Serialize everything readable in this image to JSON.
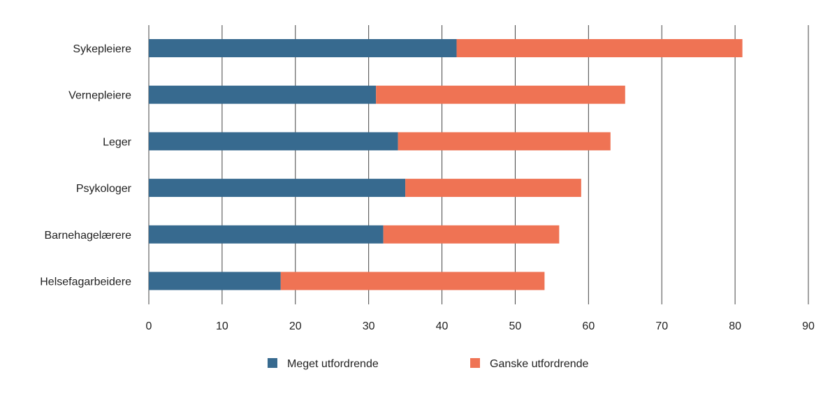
{
  "chart_data": {
    "type": "bar",
    "orientation": "horizontal",
    "stacked": true,
    "categories": [
      "Sykepleiere",
      "Vernepleiere",
      "Leger",
      "Psykologer",
      "Barnehagelærere",
      "Helsefagarbeidere"
    ],
    "series": [
      {
        "name": "Meget utfordrende",
        "color": "#376a8f",
        "values": [
          42,
          31,
          34,
          35,
          32,
          18
        ]
      },
      {
        "name": "Ganske utfordrende",
        "color": "#ef7354",
        "values": [
          39,
          34,
          29,
          24,
          24,
          36
        ]
      }
    ],
    "xlim": [
      0,
      90
    ],
    "xticks": [
      0,
      10,
      20,
      30,
      40,
      50,
      60,
      70,
      80,
      90
    ],
    "grid": "vertical",
    "legend": "bottom"
  }
}
